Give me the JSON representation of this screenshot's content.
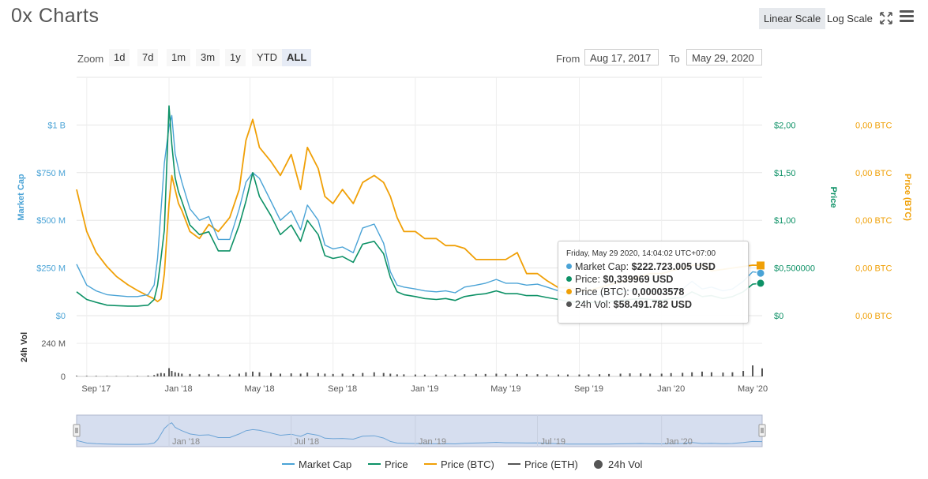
{
  "title": "0x Charts",
  "toolbar": {
    "linear_label": "Linear Scale",
    "log_label": "Log Scale",
    "expand_icon": "expand-icon",
    "menu_icon": "hamburger-menu-icon"
  },
  "zoom": {
    "label": "Zoom",
    "buttons": [
      "1d",
      "7d",
      "1m",
      "3m",
      "1y",
      "YTD",
      "ALL"
    ],
    "active": "ALL"
  },
  "range": {
    "from_label": "From",
    "from_value": "Aug 17, 2017",
    "to_label": "To",
    "to_value": "May 29, 2020"
  },
  "tooltip": {
    "date": "Friday, May 29 2020, 14:04:02 UTC+07:00",
    "rows": [
      {
        "label": "Market Cap:",
        "value": "$222.723.005 USD",
        "color": "#4aa3d6"
      },
      {
        "label": "Price:",
        "value": "$0,339969 USD",
        "color": "#0d9166"
      },
      {
        "label": "Price (BTC):",
        "value": "0,00003578",
        "color": "#f0a007"
      },
      {
        "label": "24h Vol:",
        "value": "$58.491.782 USD",
        "color": "#555555"
      }
    ]
  },
  "legend": {
    "market_cap": "Market Cap",
    "price": "Price",
    "price_btc": "Price (BTC)",
    "price_eth": "Price (ETH)",
    "vol": "24h Vol"
  },
  "colors": {
    "market_cap": "#4aa3d6",
    "price": "#0d9166",
    "price_btc": "#f0a007",
    "price_eth": "#555555",
    "vol": "#555555",
    "navigator_fill": "#d6deef"
  },
  "chart_data": {
    "type": "line",
    "x": [
      "2017-08-17",
      "2017-09-01",
      "2017-09-15",
      "2017-10-01",
      "2017-10-15",
      "2017-11-01",
      "2017-11-15",
      "2017-12-01",
      "2017-12-10",
      "2017-12-15",
      "2017-12-20",
      "2017-12-25",
      "2018-01-01",
      "2018-01-05",
      "2018-01-10",
      "2018-01-15",
      "2018-01-20",
      "2018-02-01",
      "2018-02-15",
      "2018-03-01",
      "2018-03-15",
      "2018-04-01",
      "2018-04-15",
      "2018-04-25",
      "2018-05-05",
      "2018-05-15",
      "2018-06-01",
      "2018-06-15",
      "2018-07-01",
      "2018-07-15",
      "2018-07-25",
      "2018-08-10",
      "2018-08-20",
      "2018-09-01",
      "2018-09-15",
      "2018-10-01",
      "2018-10-15",
      "2018-11-01",
      "2018-11-15",
      "2018-11-25",
      "2018-12-05",
      "2018-12-15",
      "2019-01-01",
      "2019-01-15",
      "2019-02-01",
      "2019-02-15",
      "2019-03-01",
      "2019-03-15",
      "2019-04-01",
      "2019-04-15",
      "2019-05-01",
      "2019-05-15",
      "2019-06-01",
      "2019-06-15",
      "2019-07-01",
      "2019-07-15",
      "2019-08-01",
      "2019-08-15",
      "2019-09-01",
      "2019-09-15",
      "2019-10-01",
      "2019-10-15",
      "2019-11-01",
      "2019-11-15",
      "2019-12-01",
      "2019-12-15",
      "2020-01-01",
      "2020-01-15",
      "2020-02-01",
      "2020-02-15",
      "2020-03-01",
      "2020-03-15",
      "2020-04-01",
      "2020-04-15",
      "2020-05-01",
      "2020-05-15",
      "2020-05-29"
    ],
    "series": [
      {
        "name": "Market Cap",
        "axis": "Market Cap",
        "values": [
          270,
          160,
          130,
          110,
          105,
          100,
          100,
          110,
          160,
          300,
          550,
          800,
          990,
          1050,
          850,
          770,
          700,
          560,
          500,
          520,
          400,
          400,
          560,
          700,
          750,
          720,
          600,
          500,
          550,
          450,
          580,
          500,
          370,
          350,
          360,
          330,
          460,
          480,
          380,
          230,
          160,
          150,
          140,
          130,
          125,
          130,
          120,
          150,
          160,
          170,
          190,
          170,
          170,
          160,
          165,
          150,
          130,
          115,
          110,
          110,
          110,
          115,
          125,
          130,
          140,
          130,
          120,
          135,
          140,
          180,
          140,
          150,
          130,
          140,
          180,
          230,
          222.7
        ]
      },
      {
        "name": "Price",
        "axis": "Price",
        "values": [
          0.25,
          0.17,
          0.14,
          0.11,
          0.105,
          0.1,
          0.1,
          0.11,
          0.17,
          0.32,
          0.6,
          0.9,
          2.2,
          1.8,
          1.45,
          1.3,
          1.2,
          0.95,
          0.85,
          0.88,
          0.68,
          0.68,
          0.95,
          1.2,
          1.5,
          1.25,
          1.05,
          0.85,
          0.95,
          0.78,
          1.0,
          0.85,
          0.63,
          0.6,
          0.62,
          0.56,
          0.75,
          0.78,
          0.65,
          0.4,
          0.25,
          0.22,
          0.2,
          0.18,
          0.17,
          0.18,
          0.16,
          0.2,
          0.22,
          0.23,
          0.26,
          0.23,
          0.23,
          0.21,
          0.21,
          0.19,
          0.17,
          0.15,
          0.14,
          0.14,
          0.14,
          0.15,
          0.16,
          0.17,
          0.18,
          0.17,
          0.16,
          0.18,
          0.19,
          0.25,
          0.2,
          0.21,
          0.18,
          0.2,
          0.25,
          0.33,
          0.34
        ]
      },
      {
        "name": "Price (BTC)",
        "axis": "Price (BTC)",
        "values": [
          9e-05,
          6e-05,
          4.5e-05,
          3.5e-05,
          2.8e-05,
          2.2e-05,
          1.8e-05,
          1.4e-05,
          1.2e-05,
          1e-05,
          1.2e-05,
          3e-05,
          8e-05,
          0.0001,
          9e-05,
          8e-05,
          7.5e-05,
          6e-05,
          5.5e-05,
          6.5e-05,
          6e-05,
          7e-05,
          9e-05,
          0.000125,
          0.00014,
          0.00012,
          0.00011,
          0.0001,
          0.000115,
          9e-05,
          0.00012,
          0.000105,
          8.5e-05,
          8e-05,
          9e-05,
          8e-05,
          9.5e-05,
          0.0001,
          9.5e-05,
          8.5e-05,
          7e-05,
          6e-05,
          6e-05,
          5.5e-05,
          5.5e-05,
          5e-05,
          5e-05,
          4.8e-05,
          4e-05,
          4e-05,
          4e-05,
          4e-05,
          4.5e-05,
          3e-05,
          3e-05,
          2.5e-05,
          2e-05,
          2e-05,
          1.8e-05,
          1.8e-05,
          2e-05,
          2.2e-05,
          2.4e-05,
          2.6e-05,
          2.8e-05,
          3e-05,
          3e-05,
          3.2e-05,
          3.4e-05,
          3.6e-05,
          3.6e-05,
          3.2e-05,
          3.3e-05,
          3.4e-05,
          3.5e-05,
          3.6e-05,
          3.578e-05
        ]
      },
      {
        "name": "24h Vol",
        "axis": "24h Vol",
        "values": [
          5,
          4,
          4,
          3,
          3,
          3,
          4,
          6,
          10,
          20,
          25,
          22,
          60,
          40,
          30,
          25,
          20,
          18,
          15,
          18,
          15,
          14,
          20,
          30,
          35,
          30,
          25,
          20,
          22,
          20,
          28,
          24,
          20,
          18,
          20,
          18,
          25,
          30,
          25,
          20,
          15,
          15,
          14,
          13,
          13,
          14,
          13,
          16,
          18,
          18,
          20,
          18,
          18,
          16,
          16,
          15,
          14,
          14,
          14,
          15,
          16,
          18,
          20,
          22,
          22,
          20,
          20,
          24,
          26,
          30,
          35,
          30,
          28,
          30,
          40,
          80,
          58.5
        ]
      }
    ],
    "axes": {
      "market_cap": {
        "title": "Market Cap",
        "ticks": [
          "$0",
          "$250 M",
          "$500 M",
          "$750 M",
          "$1 B"
        ],
        "range": [
          0,
          1250
        ]
      },
      "price": {
        "title": "Price",
        "ticks": [
          "$0",
          "$0,500000",
          "$1,00",
          "$1,50",
          "$2,00"
        ],
        "range": [
          0,
          2.5
        ]
      },
      "price_btc": {
        "title": "Price (BTC)",
        "ticks": [
          "0,00 BTC",
          "0,00 BTC",
          "0,00 BTC",
          "0,00 BTC",
          "0,00 BTC"
        ],
        "range": [
          0,
          0.00017
        ]
      },
      "volume": {
        "title": "24h Vol",
        "ticks": [
          "0",
          "240 M"
        ],
        "range": [
          0,
          430
        ]
      },
      "x_ticks": [
        "Sep '17",
        "Jan '18",
        "May '18",
        "Sep '18",
        "Jan '19",
        "May '19",
        "Sep '19",
        "Jan '20",
        "May '20"
      ],
      "x_tick_dates": [
        "2017-09-01",
        "2018-01-01",
        "2018-05-01",
        "2018-09-01",
        "2019-01-01",
        "2019-05-01",
        "2019-09-01",
        "2020-01-01",
        "2020-05-01"
      ],
      "x_range": [
        "2017-08-17",
        "2020-05-29"
      ]
    },
    "navigator": {
      "ticks": [
        "Jan '18",
        "Jul '18",
        "Jan '19",
        "Jul '19",
        "Jan '20"
      ],
      "tick_dates": [
        "2018-01-01",
        "2018-07-01",
        "2019-01-01",
        "2019-07-01",
        "2020-01-01"
      ]
    },
    "grid": true,
    "legend_position": "bottom-center"
  }
}
